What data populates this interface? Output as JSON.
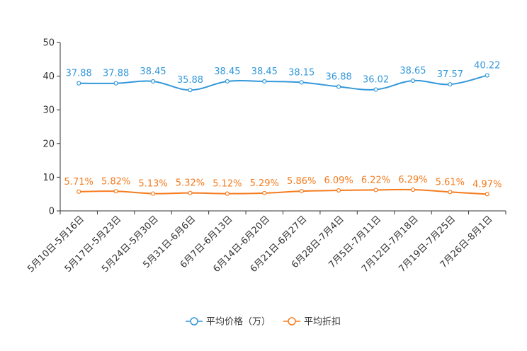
{
  "chart_data": {
    "type": "line",
    "categories": [
      "5月10日-5月16日",
      "5月17日-5月23日",
      "5月24日-5月30日",
      "5月31日-6月6日",
      "6月7日-6月13日",
      "6月14日-6月20日",
      "6月21日-6月27日",
      "6月28日-7月4日",
      "7月5日-7月11日",
      "7月12日-7月18日",
      "7月19日-7月25日",
      "7月26日-8月1日"
    ],
    "ylim": [
      0,
      50
    ],
    "yticks": [
      0,
      10,
      20,
      30,
      40,
      50
    ],
    "series": [
      {
        "name": "平均价格（万）",
        "color": "#3398DB",
        "values": [
          37.88,
          37.88,
          38.45,
          35.88,
          38.45,
          38.45,
          38.15,
          36.88,
          36.02,
          38.65,
          37.57,
          40.22
        ],
        "labels": [
          "37.88",
          "37.88",
          "38.45",
          "35.88",
          "38.45",
          "38.45",
          "38.15",
          "36.88",
          "36.02",
          "38.65",
          "37.57",
          "40.22"
        ]
      },
      {
        "name": "平均折扣",
        "color": "#F57C1F",
        "values": [
          5.71,
          5.82,
          5.13,
          5.32,
          5.12,
          5.29,
          5.86,
          6.09,
          6.22,
          6.29,
          5.61,
          4.97
        ],
        "labels": [
          "5.71%",
          "5.82%",
          "5.13%",
          "5.32%",
          "5.12%",
          "5.29%",
          "5.86%",
          "6.09%",
          "6.22%",
          "6.29%",
          "5.61%",
          "4.97%"
        ]
      }
    ],
    "legend_position": "bottom-center",
    "grid": false
  }
}
